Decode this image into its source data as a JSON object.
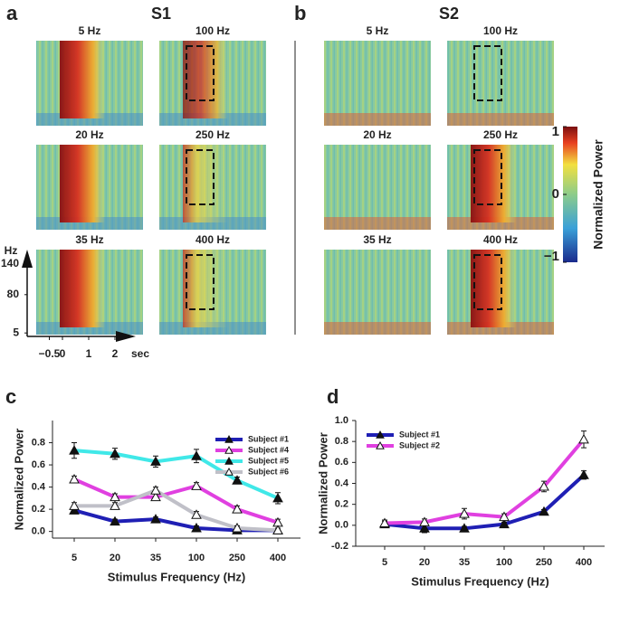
{
  "spectrograms": {
    "panel_a": {
      "letter": "a",
      "subject": "S1",
      "titles": [
        "5 Hz",
        "100 Hz",
        "20 Hz",
        "250 Hz",
        "35 Hz",
        "400 Hz"
      ]
    },
    "panel_b": {
      "letter": "b",
      "subject": "S2",
      "titles": [
        "5 Hz",
        "100 Hz",
        "20 Hz",
        "250 Hz",
        "35 Hz",
        "400 Hz"
      ]
    },
    "freq_unit": "Hz",
    "freq_ticks": [
      140,
      80,
      5
    ],
    "time_unit": "sec",
    "time_ticks": [
      {
        "value": -0.5,
        "label": "−0.5"
      },
      0,
      1,
      2
    ],
    "colorbar": {
      "label": "Normalized Power",
      "clim": [
        -1,
        1
      ],
      "ticks": [
        1,
        0,
        {
          "value": -1,
          "label": "−1"
        }
      ]
    }
  },
  "chart_data": [
    {
      "type": "line",
      "letter": "c",
      "x_label": "Stimulus Frequency (Hz)",
      "y_label": "Normalized Power",
      "categories": [
        "5",
        "20",
        "35",
        "100",
        "250",
        "400"
      ],
      "ylim": [
        -0.06,
        1.0
      ],
      "yticks": [
        {
          "value": 0,
          "label": "0.0"
        },
        0.2,
        0.4,
        0.6,
        0.8
      ],
      "legend": "upper right",
      "series": [
        {
          "name": "Subject #1",
          "color": "#1f1fb4",
          "marker": "filled",
          "values": [
            0.19,
            0.09,
            0.11,
            0.03,
            0.01,
            0.01
          ],
          "errors": [
            0.03,
            0.02,
            0.02,
            0.02,
            0.02,
            0.02
          ]
        },
        {
          "name": "Subject #4",
          "color": "#e040e0",
          "marker": "open",
          "values": [
            0.47,
            0.31,
            0.31,
            0.41,
            0.2,
            0.08
          ],
          "errors": [
            0.03,
            0.03,
            0.03,
            0.03,
            0.03,
            0.03
          ]
        },
        {
          "name": "Subject #5",
          "color": "#40e8e8",
          "marker": "filled",
          "values": [
            0.73,
            0.7,
            0.63,
            0.68,
            0.46,
            0.3
          ],
          "errors": [
            0.07,
            0.05,
            0.05,
            0.06,
            0.03,
            0.05
          ]
        },
        {
          "name": "Subject #6",
          "color": "#c0c0c8",
          "marker": "open",
          "values": [
            0.23,
            0.23,
            0.37,
            0.15,
            0.03,
            0.01
          ],
          "errors": [
            0.03,
            0.03,
            0.03,
            0.03,
            0.02,
            0.02
          ]
        }
      ]
    },
    {
      "type": "line",
      "letter": "d",
      "x_label": "Stimulus Frequency (Hz)",
      "y_label": "Normalized Power",
      "categories": [
        "5",
        "20",
        "35",
        "100",
        "250",
        "400"
      ],
      "ylim": [
        -0.2,
        1.0
      ],
      "yticks": [
        -0.2,
        {
          "value": 0,
          "label": "0.0"
        },
        0.2,
        0.4,
        0.6,
        0.8,
        {
          "value": 1,
          "label": "1.0"
        }
      ],
      "legend": "upper left",
      "series": [
        {
          "name": "Subject #1",
          "color": "#1f1fb4",
          "marker": "filled",
          "values": [
            0.01,
            -0.03,
            -0.03,
            0.01,
            0.13,
            0.48
          ],
          "errors": [
            0.03,
            0.04,
            0.02,
            0.02,
            0.02,
            0.04
          ]
        },
        {
          "name": "Subject #2",
          "color": "#e040e0",
          "marker": "open",
          "values": [
            0.02,
            0.03,
            0.11,
            0.08,
            0.37,
            0.82
          ],
          "errors": [
            0.03,
            0.03,
            0.05,
            0.03,
            0.05,
            0.08
          ]
        }
      ]
    }
  ]
}
